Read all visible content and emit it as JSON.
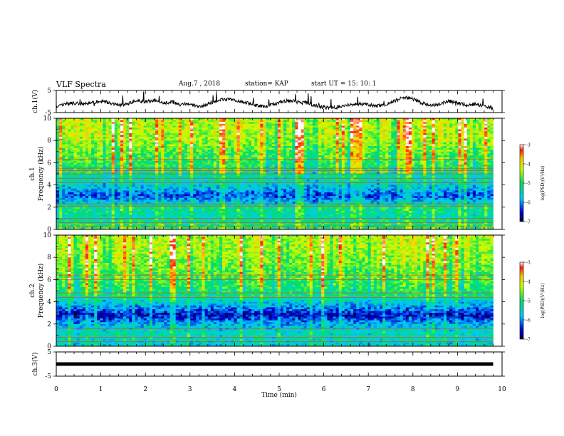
{
  "header": {
    "title": "VLF Spectra",
    "date": "Aug.7 , 2018",
    "station": "station= KAP",
    "start": "start UT = 15: 10: 1"
  },
  "chart_data": [
    {
      "type": "line",
      "panel": "ch1-waveform",
      "ylabel": "ch.1(V)",
      "ylim": [
        -5,
        5
      ],
      "yticks": [
        "5",
        "-5"
      ],
      "xlim": [
        0,
        10
      ],
      "x_extent": [
        0,
        9.8
      ],
      "color": "#000000",
      "series": [
        {
          "x": [
            0.0,
            0.2,
            0.4,
            0.6,
            0.8,
            1.0,
            1.2,
            1.4,
            1.6,
            1.8,
            2.0,
            2.2,
            2.4,
            2.6,
            2.8,
            3.0,
            3.2,
            3.4,
            3.6,
            3.8,
            4.0,
            4.2,
            4.4,
            4.6,
            4.8,
            5.0,
            5.2,
            5.4,
            5.6,
            5.8,
            6.0,
            6.2,
            6.4,
            6.6,
            6.8,
            7.0,
            7.2,
            7.4,
            7.6,
            7.8,
            8.0,
            8.2,
            8.4,
            8.6,
            8.8,
            9.0,
            9.2,
            9.4,
            9.6,
            9.8
          ],
          "values": [
            -2.2,
            -1.0,
            -0.8,
            -1.2,
            -0.5,
            0.2,
            -0.6,
            -1.8,
            -0.9,
            0.4,
            -0.3,
            0.6,
            -0.8,
            -0.2,
            -1.5,
            -0.9,
            -2.3,
            -1.1,
            0.3,
            1.0,
            0.6,
            -0.2,
            -1.2,
            -2.3,
            -1.6,
            -0.4,
            0.4,
            0.2,
            -0.5,
            -1.8,
            -2.6,
            -2.8,
            -2.2,
            -1.4,
            -1.0,
            -1.6,
            -2.0,
            -1.2,
            0.4,
            1.8,
            1.2,
            -0.6,
            -1.8,
            -1.2,
            0.2,
            -0.6,
            -1.5,
            -1.2,
            -2.0,
            -3.2
          ]
        }
      ]
    },
    {
      "type": "heatmap",
      "panel": "ch1-spectrogram",
      "ylabel": "ch.1 Frequency (kHz)",
      "ylim": [
        0,
        10
      ],
      "yticks": [
        "0",
        "2",
        "4",
        "6",
        "8",
        "10"
      ],
      "xlim": [
        0,
        10
      ],
      "x_extent": [
        0,
        9.8
      ],
      "colorbar": {
        "label": "log(PSD)(V²/Hz)",
        "range": [
          -7,
          -3
        ],
        "ticks": [
          "-3",
          "-4",
          "-5",
          "-6",
          "-7"
        ]
      },
      "profile_log_psd": [
        {
          "freq_khz": 0.2,
          "value": -5.0
        },
        {
          "freq_khz": 1.0,
          "value": -5.4
        },
        {
          "freq_khz": 2.0,
          "value": -5.2
        },
        {
          "freq_khz": 3.0,
          "value": -6.3
        },
        {
          "freq_khz": 4.0,
          "value": -5.6
        },
        {
          "freq_khz": 5.0,
          "value": -5.3
        },
        {
          "freq_khz": 6.0,
          "value": -5.0
        },
        {
          "freq_khz": 7.0,
          "value": -4.8
        },
        {
          "freq_khz": 8.0,
          "value": -4.5
        },
        {
          "freq_khz": 9.0,
          "value": -4.4
        },
        {
          "freq_khz": 10.0,
          "value": -4.4
        }
      ],
      "bright_lines_khz": [
        0.3,
        0.6,
        1.0,
        2.1,
        2.3,
        4.2,
        4.6,
        5.0,
        5.3,
        5.5,
        6.3
      ]
    },
    {
      "type": "heatmap",
      "panel": "ch2-spectrogram",
      "ylabel": "ch.2 Frequency (kHz)",
      "ylim": [
        0,
        10
      ],
      "yticks": [
        "0",
        "2",
        "4",
        "6",
        "8",
        "10"
      ],
      "xlim": [
        0,
        10
      ],
      "x_extent": [
        0,
        9.8
      ],
      "colorbar": {
        "label": "log(PSD)(V²/Hz)",
        "range": [
          -7,
          -3
        ],
        "ticks": [
          "-3",
          "-4",
          "-5",
          "-6",
          "-7"
        ]
      },
      "profile_log_psd": [
        {
          "freq_khz": 0.2,
          "value": -5.6
        },
        {
          "freq_khz": 1.0,
          "value": -5.4
        },
        {
          "freq_khz": 2.0,
          "value": -5.8
        },
        {
          "freq_khz": 2.8,
          "value": -6.6
        },
        {
          "freq_khz": 3.5,
          "value": -6.0
        },
        {
          "freq_khz": 4.5,
          "value": -5.2
        },
        {
          "freq_khz": 6.0,
          "value": -4.9
        },
        {
          "freq_khz": 7.0,
          "value": -4.7
        },
        {
          "freq_khz": 8.0,
          "value": -4.5
        },
        {
          "freq_khz": 9.0,
          "value": -4.4
        },
        {
          "freq_khz": 10.0,
          "value": -4.4
        }
      ],
      "bright_lines_khz": [
        0.4,
        0.8,
        1.6,
        4.4,
        4.8,
        6.0,
        6.4
      ]
    },
    {
      "type": "line",
      "panel": "ch3-waveform",
      "ylabel": "ch.3(V)",
      "ylim": [
        -5,
        5
      ],
      "yticks": [
        "5",
        "-5"
      ],
      "xlim": [
        0,
        10
      ],
      "x_extent": [
        0,
        9.8
      ],
      "color": "#000000",
      "series": [
        {
          "x": [
            0,
            9.8
          ],
          "values": [
            0,
            0
          ]
        }
      ]
    }
  ],
  "xaxis": {
    "label": "Time (min)",
    "ticks": [
      "0",
      "1",
      "2",
      "3",
      "4",
      "5",
      "6",
      "7",
      "8",
      "9",
      "10"
    ]
  }
}
